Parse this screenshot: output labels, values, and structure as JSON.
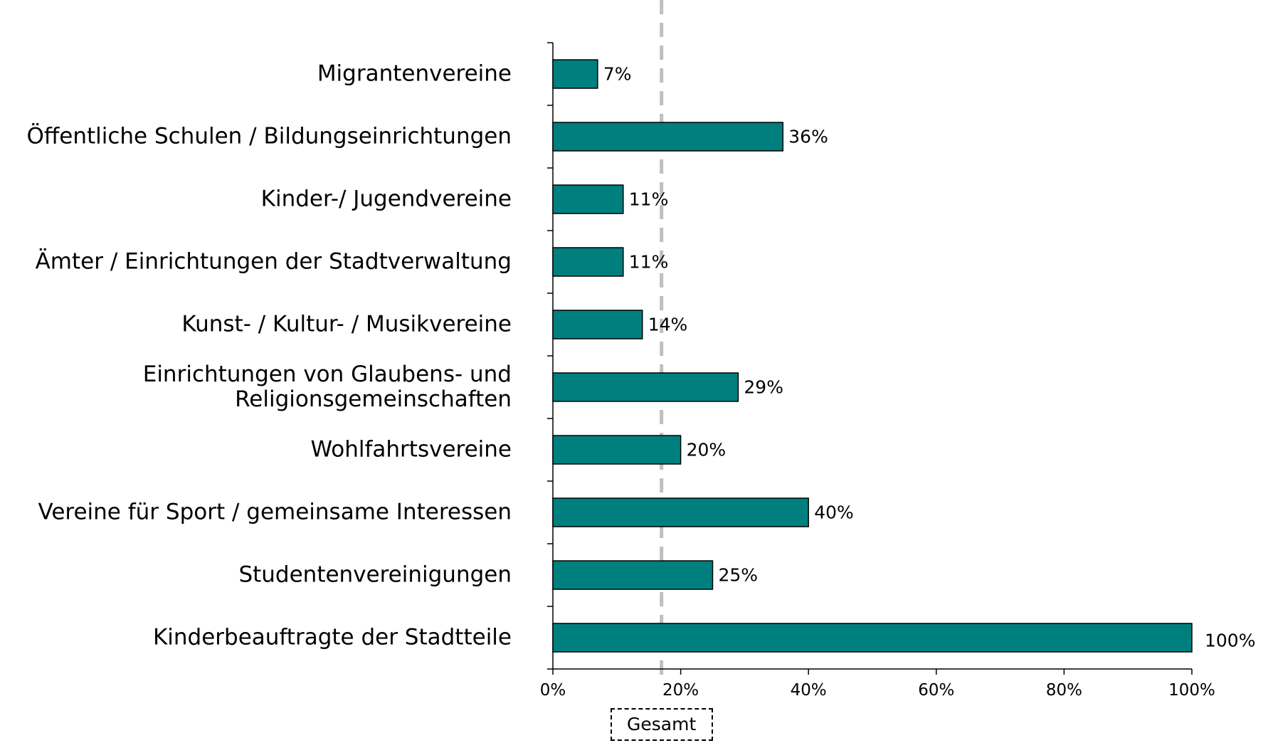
{
  "chart_data": {
    "type": "barh",
    "categories": [
      "Migrantenvereine",
      "Öffentliche Schulen / Bildungseinrichtungen",
      "Kinder-/ Jugendvereine",
      "Ämter / Einrichtungen der Stadtverwaltung",
      "Kunst- / Kultur- / Musikvereine",
      "Einrichtungen von Glaubens- und\nReligionsgemeinschaften",
      "Wohlfahrtsvereine",
      "Vereine für Sport / gemeinsame Interessen",
      "Studentenvereinigungen",
      "Kinderbeauftragte der Stadtteile"
    ],
    "values": [
      7,
      36,
      11,
      11,
      14,
      29,
      20,
      40,
      25,
      100
    ],
    "value_labels": [
      "7%",
      "36%",
      "11%",
      "11%",
      "14%",
      "29%",
      "20%",
      "40%",
      "25%",
      "100%"
    ],
    "color": "#007f7f",
    "xlim": [
      0,
      100
    ],
    "xticks": [
      {
        "value": 0,
        "label": "0%"
      },
      {
        "value": 20,
        "label": "20%"
      },
      {
        "value": 40,
        "label": "40%"
      },
      {
        "value": 60,
        "label": "60%"
      },
      {
        "value": 80,
        "label": "80%"
      },
      {
        "value": 100,
        "label": "100%"
      }
    ],
    "reference_line": {
      "value": 17,
      "label": "Gesamt"
    }
  }
}
